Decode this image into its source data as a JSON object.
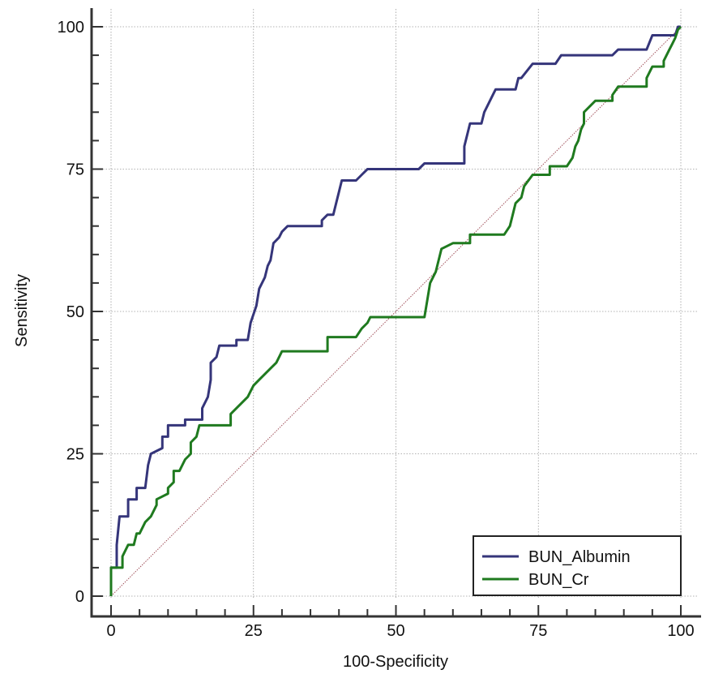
{
  "chart_data": {
    "type": "line",
    "title": "",
    "xlabel": "100-Specificity",
    "ylabel": "Sensitivity",
    "xlim": [
      0,
      100
    ],
    "ylim": [
      0,
      100
    ],
    "xticks": [
      "0",
      "25",
      "50",
      "75",
      "100"
    ],
    "yticks": [
      "0",
      "25",
      "50",
      "75",
      "100"
    ],
    "grid": true,
    "legend_position": "bottom-right",
    "reference_line": {
      "from": [
        0,
        0
      ],
      "to": [
        100,
        100
      ],
      "color": "#a0505a"
    },
    "series": [
      {
        "name": "BUN_Albumin",
        "color": "#35357a",
        "points": [
          [
            0,
            0
          ],
          [
            0,
            5
          ],
          [
            1,
            5
          ],
          [
            1,
            9
          ],
          [
            1.5,
            14
          ],
          [
            3,
            14
          ],
          [
            3,
            17
          ],
          [
            4.5,
            17
          ],
          [
            4.5,
            19
          ],
          [
            6,
            19
          ],
          [
            6.5,
            23
          ],
          [
            7,
            25
          ],
          [
            9,
            26
          ],
          [
            9,
            28
          ],
          [
            10,
            28
          ],
          [
            10,
            30
          ],
          [
            13,
            30
          ],
          [
            13,
            31
          ],
          [
            16,
            31
          ],
          [
            16,
            33
          ],
          [
            17,
            35
          ],
          [
            17.5,
            38
          ],
          [
            17.5,
            41
          ],
          [
            18.5,
            42
          ],
          [
            19,
            44
          ],
          [
            22,
            44
          ],
          [
            22,
            45
          ],
          [
            24,
            45
          ],
          [
            24.5,
            48
          ],
          [
            25.5,
            51
          ],
          [
            26,
            54
          ],
          [
            27,
            56
          ],
          [
            27.5,
            58
          ],
          [
            28,
            59
          ],
          [
            28.5,
            62
          ],
          [
            29.5,
            63
          ],
          [
            30,
            64
          ],
          [
            31,
            65
          ],
          [
            37,
            65
          ],
          [
            37,
            66
          ],
          [
            38,
            67
          ],
          [
            39,
            67
          ],
          [
            40,
            71
          ],
          [
            40.5,
            73
          ],
          [
            43,
            73
          ],
          [
            44,
            74
          ],
          [
            45,
            75
          ],
          [
            54,
            75
          ],
          [
            55,
            76
          ],
          [
            62,
            76
          ],
          [
            62,
            79
          ],
          [
            62.5,
            81
          ],
          [
            63,
            83
          ],
          [
            65,
            83
          ],
          [
            65.5,
            85
          ],
          [
            66,
            86
          ],
          [
            67,
            88
          ],
          [
            67.5,
            89
          ],
          [
            71,
            89
          ],
          [
            71.5,
            91
          ],
          [
            72,
            91
          ],
          [
            74,
            93.5
          ],
          [
            78,
            93.5
          ],
          [
            79,
            95
          ],
          [
            88,
            95
          ],
          [
            89,
            96
          ],
          [
            94,
            96
          ],
          [
            95,
            98.5
          ],
          [
            99,
            98.5
          ],
          [
            99.5,
            100
          ],
          [
            100,
            100
          ]
        ]
      },
      {
        "name": "BUN_Cr",
        "color": "#1f7a1f",
        "points": [
          [
            0,
            0
          ],
          [
            0,
            5
          ],
          [
            2,
            5
          ],
          [
            2,
            7
          ],
          [
            3,
            9
          ],
          [
            4,
            9
          ],
          [
            4.5,
            11
          ],
          [
            5,
            11
          ],
          [
            6,
            13
          ],
          [
            7,
            14
          ],
          [
            7.5,
            15
          ],
          [
            8,
            16
          ],
          [
            8,
            17
          ],
          [
            10,
            18
          ],
          [
            10,
            19
          ],
          [
            11,
            20
          ],
          [
            11,
            22
          ],
          [
            12,
            22
          ],
          [
            13,
            24
          ],
          [
            14,
            25
          ],
          [
            14,
            27
          ],
          [
            15,
            28
          ],
          [
            15.5,
            30
          ],
          [
            21,
            30
          ],
          [
            21,
            32
          ],
          [
            22,
            33
          ],
          [
            23,
            34
          ],
          [
            24,
            35
          ],
          [
            24.5,
            36
          ],
          [
            25,
            37
          ],
          [
            26,
            38
          ],
          [
            27,
            39
          ],
          [
            28,
            40
          ],
          [
            29,
            41
          ],
          [
            29.5,
            42
          ],
          [
            30,
            43
          ],
          [
            38,
            43
          ],
          [
            38,
            45.5
          ],
          [
            43,
            45.5
          ],
          [
            44,
            47
          ],
          [
            45,
            48
          ],
          [
            45.5,
            49
          ],
          [
            55,
            49
          ],
          [
            55.5,
            52
          ],
          [
            56,
            55
          ],
          [
            56.5,
            56
          ],
          [
            57,
            57
          ],
          [
            57.5,
            59
          ],
          [
            58,
            61
          ],
          [
            60,
            62
          ],
          [
            63,
            62
          ],
          [
            63,
            63.5
          ],
          [
            69,
            63.5
          ],
          [
            70,
            65
          ],
          [
            70.5,
            67
          ],
          [
            71,
            69
          ],
          [
            72,
            70
          ],
          [
            72.5,
            72
          ],
          [
            74,
            74
          ],
          [
            77,
            74
          ],
          [
            77,
            75.5
          ],
          [
            80,
            75.5
          ],
          [
            81,
            77
          ],
          [
            81.5,
            79
          ],
          [
            82,
            80
          ],
          [
            82.5,
            82
          ],
          [
            83,
            83
          ],
          [
            83,
            85
          ],
          [
            84,
            86
          ],
          [
            85,
            87
          ],
          [
            88,
            87
          ],
          [
            88,
            88
          ],
          [
            89,
            89.5
          ],
          [
            94,
            89.5
          ],
          [
            94,
            91
          ],
          [
            95,
            93
          ],
          [
            97,
            93
          ],
          [
            97,
            94
          ],
          [
            98,
            96
          ],
          [
            98.5,
            97
          ],
          [
            99,
            98
          ],
          [
            99.5,
            99.5
          ],
          [
            100,
            100
          ]
        ]
      }
    ]
  }
}
